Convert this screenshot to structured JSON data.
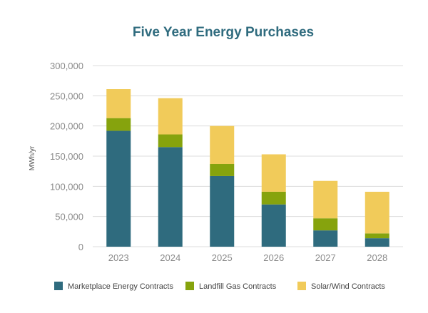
{
  "chart_data": {
    "type": "bar",
    "stacked": true,
    "title": "Five Year Energy Purchases",
    "xlabel": "",
    "ylabel": "MWh/yr",
    "categories": [
      "2023",
      "2024",
      "2025",
      "2026",
      "2027",
      "2028"
    ],
    "series": [
      {
        "name": "Marketplace Energy Contracts",
        "color": "#2f6b7e",
        "values": [
          192000,
          165000,
          117000,
          70000,
          27000,
          14000
        ]
      },
      {
        "name": "Landfill Gas Contracts",
        "color": "#86a30d",
        "values": [
          21000,
          21000,
          20000,
          21000,
          20000,
          8000
        ]
      },
      {
        "name": "Solar/Wind Contracts",
        "color": "#f1cb5a",
        "values": [
          48000,
          60000,
          63000,
          62000,
          62000,
          69000
        ]
      }
    ],
    "ylim": [
      0,
      300000
    ],
    "yticks": [
      0,
      50000,
      100000,
      150000,
      200000,
      250000,
      300000
    ],
    "ytick_labels": [
      "0",
      "50,000",
      "100,000",
      "150,000",
      "200,000",
      "250,000",
      "300,000"
    ],
    "grid": true,
    "legend_position": "bottom"
  },
  "colors": {
    "title": "#2f6b7e",
    "tick_text": "#8a8a8a",
    "axis_label": "#555555",
    "legend_text": "#444444",
    "grid": "#dcdcdc"
  }
}
